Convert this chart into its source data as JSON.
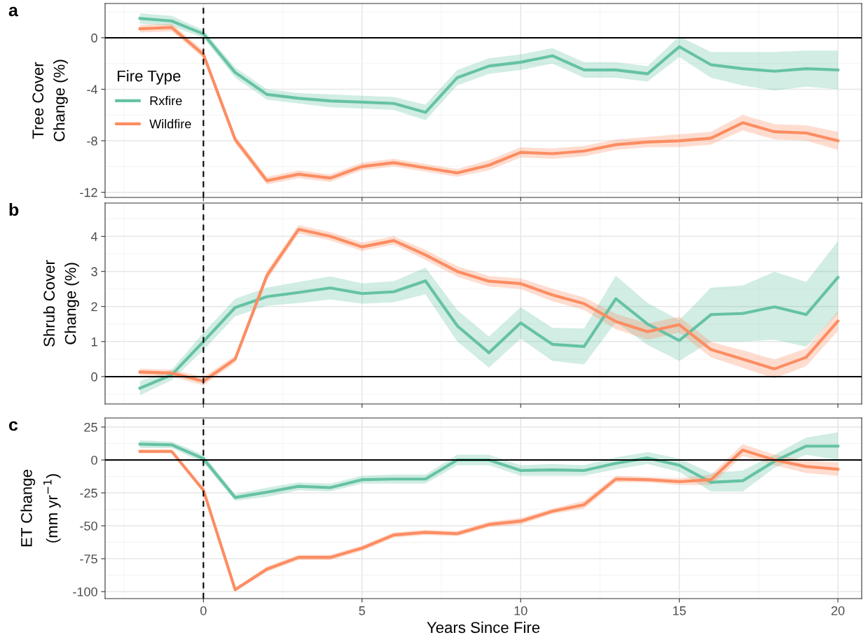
{
  "chart_data": [
    {
      "type": "line",
      "title": "a",
      "ylabel": "Tree Cover\nChange (%)",
      "x": [
        -2,
        -1,
        0,
        1,
        2,
        3,
        4,
        5,
        6,
        7,
        8,
        9,
        10,
        11,
        12,
        13,
        14,
        15,
        16,
        17,
        18,
        19,
        20
      ],
      "xlim": [
        -3.1,
        20.75
      ],
      "xticks": [
        0,
        5,
        10,
        15,
        20
      ],
      "ylim": [
        -12.4,
        2.66
      ],
      "yticks": [
        0,
        -4,
        -8,
        -12
      ],
      "grid": true,
      "legend": "left",
      "legend_title": "Fire Type",
      "tick_labels": "y",
      "line_style": "solid",
      "marker": "none",
      "ref_lines": [
        {
          "axis": "y",
          "value": 0,
          "color": "#000000",
          "line_style": "solid"
        },
        {
          "axis": "x",
          "value": 0,
          "color": "#000000",
          "line_style": "dashed"
        }
      ],
      "series": [
        {
          "name": "Rxfire",
          "color": "#66c2a5",
          "values": [
            1.5,
            1.3,
            0.3,
            -2.7,
            -4.4,
            -4.7,
            -4.9,
            -5.0,
            -5.1,
            -5.8,
            -3.1,
            -2.2,
            -1.9,
            -1.4,
            -2.5,
            -2.5,
            -2.8,
            -0.7,
            -2.1,
            -2.4,
            -2.6,
            -2.4,
            -2.5
          ],
          "lower": [
            1.1,
            0.9,
            0.0,
            -3.1,
            -4.8,
            -5.1,
            -5.4,
            -5.5,
            -5.6,
            -6.4,
            -3.7,
            -2.8,
            -2.5,
            -2.0,
            -3.1,
            -3.1,
            -3.4,
            -1.5,
            -3.1,
            -3.7,
            -4.1,
            -3.8,
            -4.0
          ],
          "upper": [
            1.9,
            1.7,
            0.6,
            -2.3,
            -4.0,
            -4.3,
            -4.4,
            -4.5,
            -4.6,
            -5.2,
            -2.5,
            -1.6,
            -1.3,
            -0.8,
            -1.9,
            -1.9,
            -2.2,
            0.1,
            -1.1,
            -1.1,
            -1.1,
            -1.0,
            -1.0
          ]
        },
        {
          "name": "Wildfire",
          "color": "#fc8d62",
          "values": [
            0.7,
            0.8,
            -1.3,
            -7.9,
            -11.1,
            -10.6,
            -10.9,
            -10.0,
            -9.7,
            -10.1,
            -10.5,
            -9.9,
            -8.9,
            -9.0,
            -8.8,
            -8.3,
            -8.1,
            -8.0,
            -7.8,
            -6.6,
            -7.3,
            -7.4,
            -8.0
          ],
          "lower": [
            0.4,
            0.5,
            -1.6,
            -8.2,
            -11.4,
            -10.9,
            -11.2,
            -10.3,
            -10.0,
            -10.4,
            -10.8,
            -10.3,
            -9.3,
            -9.4,
            -9.2,
            -8.7,
            -8.5,
            -8.5,
            -8.3,
            -7.2,
            -7.9,
            -8.0,
            -8.7
          ],
          "upper": [
            1.0,
            1.1,
            -1.0,
            -7.6,
            -10.8,
            -10.3,
            -10.6,
            -9.7,
            -9.4,
            -9.8,
            -10.2,
            -9.5,
            -8.5,
            -8.6,
            -8.4,
            -7.9,
            -7.7,
            -7.5,
            -7.3,
            -6.0,
            -6.7,
            -6.8,
            -7.3
          ]
        }
      ]
    },
    {
      "type": "line",
      "title": "b",
      "ylabel": "Shrub Cover\nChange (%)",
      "x": [
        -2,
        -1,
        0,
        1,
        2,
        3,
        4,
        5,
        6,
        7,
        8,
        9,
        10,
        11,
        12,
        13,
        14,
        15,
        16,
        17,
        18,
        19,
        20
      ],
      "xlim": [
        -3.1,
        20.75
      ],
      "xticks": [
        0,
        5,
        10,
        15,
        20
      ],
      "ylim": [
        -0.78,
        4.95
      ],
      "yticks": [
        0,
        1,
        2,
        3,
        4
      ],
      "grid": true,
      "tick_labels": "y",
      "line_style": "solid",
      "marker": "none",
      "ref_lines": [
        {
          "axis": "y",
          "value": 0,
          "color": "#000000",
          "line_style": "solid"
        },
        {
          "axis": "x",
          "value": 0,
          "color": "#000000",
          "line_style": "dashed"
        }
      ],
      "series": [
        {
          "color": "#66c2a5",
          "values": [
            -0.33,
            0.05,
            1.0,
            1.97,
            2.28,
            2.4,
            2.53,
            2.37,
            2.42,
            2.73,
            1.45,
            0.68,
            1.53,
            0.92,
            0.86,
            2.22,
            1.5,
            1.03,
            1.77,
            1.8,
            1.99,
            1.77,
            2.83
          ],
          "lower": [
            -0.53,
            -0.1,
            0.75,
            1.72,
            2.02,
            2.1,
            2.2,
            2.08,
            2.12,
            2.35,
            1.0,
            0.26,
            1.08,
            0.45,
            0.35,
            1.55,
            0.9,
            0.45,
            1.0,
            1.0,
            1.05,
            0.85,
            1.8
          ],
          "upper": [
            -0.13,
            0.2,
            1.25,
            2.22,
            2.54,
            2.7,
            2.86,
            2.66,
            2.72,
            3.11,
            1.9,
            1.14,
            1.98,
            1.39,
            1.37,
            2.88,
            2.1,
            1.61,
            2.54,
            2.6,
            2.99,
            2.7,
            3.86
          ]
        },
        {
          "color": "#fc8d62",
          "values": [
            0.13,
            0.1,
            -0.13,
            0.5,
            2.88,
            4.2,
            4.0,
            3.7,
            3.88,
            3.47,
            3.0,
            2.72,
            2.65,
            2.33,
            2.08,
            1.57,
            1.28,
            1.48,
            0.77,
            0.5,
            0.22,
            0.55,
            1.58
          ],
          "lower": [
            0.03,
            0.0,
            -0.25,
            0.4,
            2.75,
            4.08,
            3.88,
            3.58,
            3.76,
            3.33,
            2.85,
            2.57,
            2.5,
            2.15,
            1.9,
            1.35,
            1.05,
            1.25,
            0.55,
            0.25,
            -0.05,
            0.3,
            1.3
          ],
          "upper": [
            0.23,
            0.2,
            -0.01,
            0.6,
            3.01,
            4.32,
            4.12,
            3.82,
            4.0,
            3.61,
            3.15,
            2.87,
            2.8,
            2.51,
            2.26,
            1.79,
            1.51,
            1.71,
            0.99,
            0.75,
            0.49,
            0.8,
            1.86
          ]
        }
      ]
    },
    {
      "type": "line",
      "title": "c",
      "ylabel": "ET Change\n(mm yr$^{−1}$)",
      "xlabel": "Years Since Fire",
      "x": [
        -2,
        -1,
        0,
        1,
        2,
        3,
        4,
        5,
        6,
        7,
        8,
        9,
        10,
        11,
        12,
        13,
        14,
        15,
        16,
        17,
        18,
        19,
        20
      ],
      "xlim": [
        -3.1,
        20.75
      ],
      "xticks": [
        0,
        5,
        10,
        15,
        20
      ],
      "ylim": [
        -105.3,
        31.9
      ],
      "yticks": [
        {
          "value": 25,
          "label": "25"
        },
        {
          "value": 0,
          "label": "0"
        },
        {
          "value": -25,
          "label": "-25"
        },
        {
          "value": -50,
          "label": "-50"
        },
        {
          "value": -75,
          "label": "-75"
        },
        {
          "value": -100,
          "label": "-100"
        }
      ],
      "grid": true,
      "line_style": "solid",
      "marker": "none",
      "ref_lines": [
        {
          "axis": "y",
          "value": 0,
          "color": "#000000",
          "line_style": "solid"
        },
        {
          "axis": "x",
          "value": 0,
          "color": "#000000",
          "line_style": "dashed"
        }
      ],
      "series": [
        {
          "color": "#66c2a5",
          "values": [
            12,
            11.5,
            1,
            -28.5,
            -24.5,
            -20,
            -21,
            -15,
            -14.5,
            -14.5,
            0,
            0,
            -8,
            -7.5,
            -8,
            -2.5,
            1.5,
            -4,
            -17,
            -15.8,
            -1,
            10.5,
            10.5
          ],
          "lower": [
            9,
            9,
            -2,
            -31,
            -28,
            -23,
            -24,
            -18,
            -18,
            -18,
            -4,
            -4,
            -12,
            -12,
            -12,
            -7,
            -3,
            -9,
            -24,
            -24,
            -6,
            4,
            0
          ],
          "upper": [
            15,
            14,
            4,
            -26,
            -21,
            -17,
            -18,
            -12,
            -11,
            -11,
            4,
            4,
            -4,
            -3,
            -4,
            2,
            6,
            1,
            -10,
            -8,
            4,
            17,
            21
          ]
        },
        {
          "color": "#fc8d62",
          "values": [
            6.5,
            6.5,
            -23,
            -98.5,
            -83,
            -74,
            -74,
            -67,
            -57,
            -55,
            -56,
            -49,
            -46.5,
            -39,
            -34,
            -14.5,
            -15,
            -16.5,
            -15,
            7.5,
            0,
            -5,
            -7
          ],
          "lower": [
            5,
            5,
            -25,
            -100,
            -85,
            -76,
            -76,
            -69,
            -59,
            -57,
            -58,
            -51,
            -49,
            -41,
            -37,
            -17,
            -17,
            -19,
            -19,
            3,
            -4,
            -10,
            -12
          ],
          "upper": [
            8,
            8,
            -21,
            -97,
            -81,
            -72,
            -72,
            -65,
            -55,
            -53,
            -54,
            -47,
            -44,
            -37,
            -31,
            -12,
            -13,
            -14,
            -11,
            12,
            4,
            0,
            -2
          ]
        }
      ]
    }
  ]
}
